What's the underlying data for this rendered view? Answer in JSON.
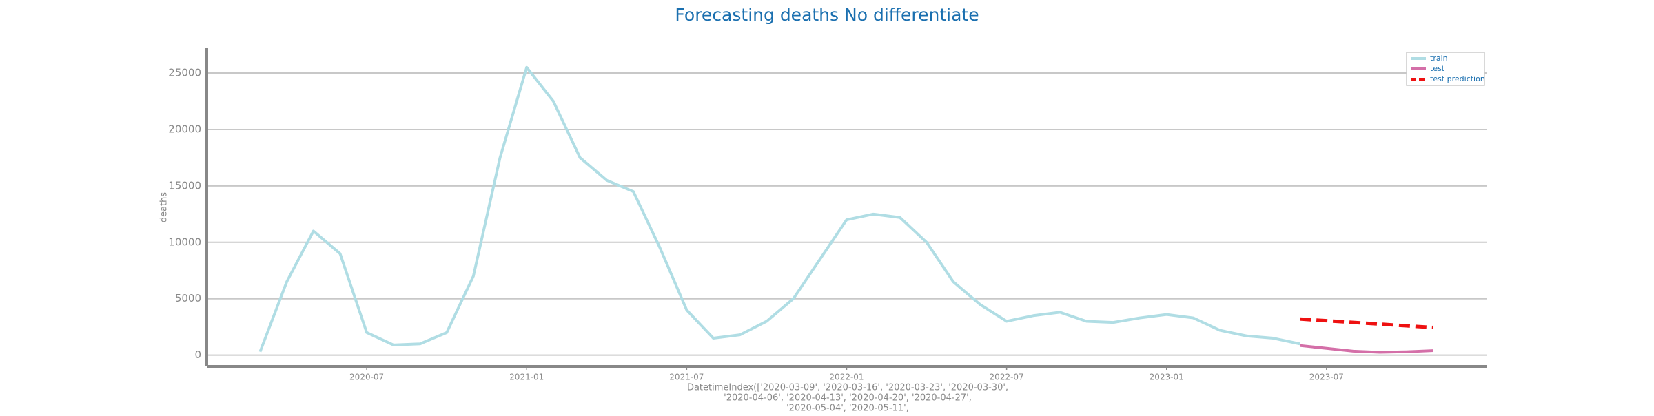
{
  "chart_data": {
    "type": "line",
    "title": "Forecasting deaths No differentiate",
    "ylabel": "deaths",
    "xlabel": [
      "DatetimeIndex(['2020-03-09', '2020-03-16', '2020-03-23', '2020-03-30',",
      "'2020-04-06', '2020-04-13', '2020-04-20', '2020-04-27',",
      "'2020-05-04', '2020-05-11',"
    ],
    "xlim": [
      "2020-01",
      "2024-01"
    ],
    "xticks": [
      "2020-07",
      "2021-01",
      "2021-07",
      "2022-01",
      "2022-07",
      "2023-01",
      "2023-07"
    ],
    "ylim": [
      -1000,
      27200
    ],
    "yticks": [
      0,
      5000,
      10000,
      15000,
      20000,
      25000
    ],
    "grid": true,
    "legend": "upper right",
    "series": [
      {
        "name": "train",
        "color": "#b0dde4",
        "dash": false,
        "x": [
          "2020-03",
          "2020-04",
          "2020-05",
          "2020-06",
          "2020-07",
          "2020-08",
          "2020-09",
          "2020-10",
          "2020-11",
          "2020-12",
          "2021-01",
          "2021-02",
          "2021-03",
          "2021-04",
          "2021-05",
          "2021-06",
          "2021-07",
          "2021-08",
          "2021-09",
          "2021-10",
          "2021-11",
          "2021-12",
          "2022-01",
          "2022-02",
          "2022-03",
          "2022-04",
          "2022-05",
          "2022-06",
          "2022-07",
          "2022-08",
          "2022-09",
          "2022-10",
          "2022-11",
          "2022-12",
          "2023-01",
          "2023-02",
          "2023-03",
          "2023-04",
          "2023-05",
          "2023-06"
        ],
        "values": [
          300,
          6500,
          11000,
          9000,
          2000,
          900,
          1000,
          2000,
          7000,
          17500,
          25500,
          22500,
          17500,
          15500,
          14500,
          9500,
          4000,
          1500,
          1800,
          3000,
          5000,
          8500,
          12000,
          12500,
          12200,
          10000,
          6500,
          4500,
          3000,
          3500,
          3800,
          3000,
          2900,
          3300,
          3600,
          3300,
          2200,
          1700,
          1500,
          1000
        ]
      },
      {
        "name": "test",
        "color": "#d46fa8",
        "dash": false,
        "x": [
          "2023-06",
          "2023-07",
          "2023-08",
          "2023-09",
          "2023-10",
          "2023-11"
        ],
        "values": [
          850,
          600,
          350,
          250,
          300,
          400
        ]
      },
      {
        "name": "test prediction",
        "color": "#ee1111",
        "dash": true,
        "x": [
          "2023-06",
          "2023-07",
          "2023-08",
          "2023-09",
          "2023-10",
          "2023-11"
        ],
        "values": [
          3200,
          3050,
          2900,
          2750,
          2600,
          2450
        ]
      }
    ]
  }
}
